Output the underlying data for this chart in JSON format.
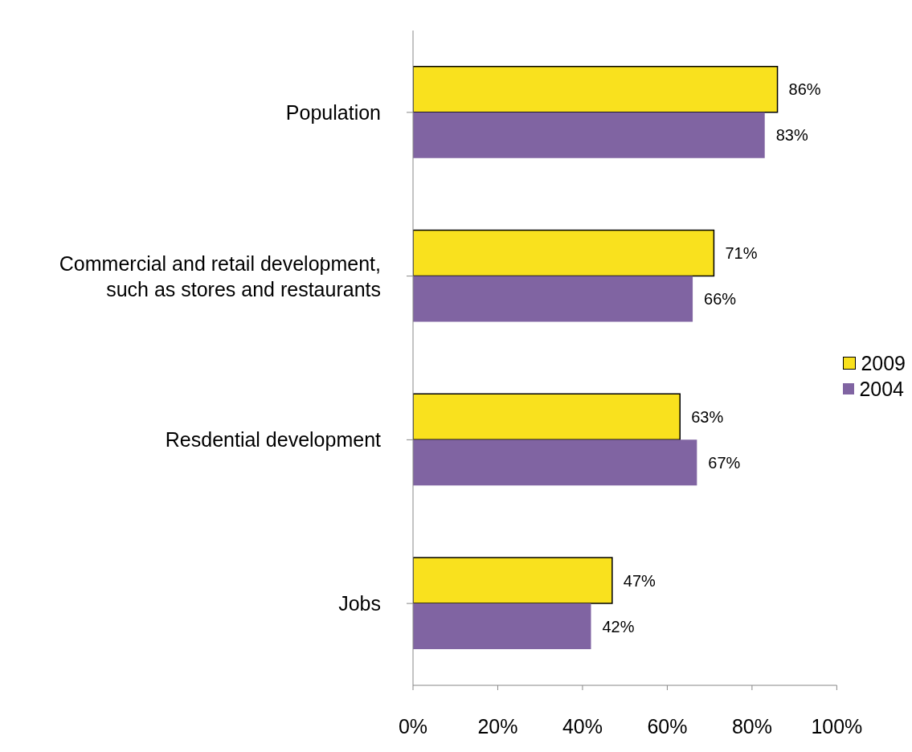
{
  "chart_data": {
    "type": "bar",
    "orientation": "horizontal",
    "categories": [
      "Population",
      "Commercial and retail development,\nsuch as stores and restaurants",
      "Resdential development",
      "Jobs"
    ],
    "series": [
      {
        "name": "2009",
        "color": "#f9e11e",
        "values": [
          86,
          71,
          63,
          47
        ],
        "value_labels": [
          "86%",
          "71%",
          "63%",
          "47%"
        ]
      },
      {
        "name": "2004",
        "color": "#8064a2",
        "values": [
          83,
          66,
          67,
          42
        ],
        "value_labels": [
          "83%",
          "66%",
          "67%",
          "42%"
        ]
      }
    ],
    "xlim": [
      0,
      100
    ],
    "xticks": [
      {
        "value": 0,
        "label": "0%"
      },
      {
        "value": 20,
        "label": "20%"
      },
      {
        "value": 40,
        "label": "40%"
      },
      {
        "value": 60,
        "label": "60%"
      },
      {
        "value": 80,
        "label": "80%"
      },
      {
        "value": 100,
        "label": "100%"
      }
    ],
    "legend": "right",
    "grid": false
  }
}
